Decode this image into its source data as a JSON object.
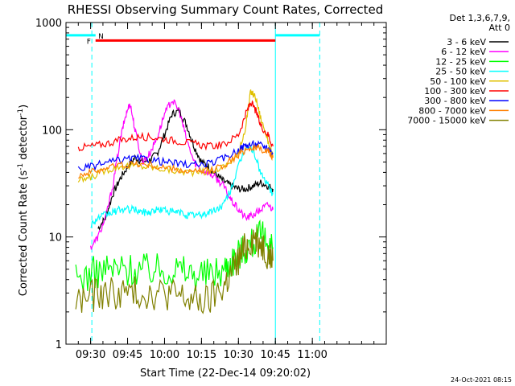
{
  "chart_data": {
    "type": "line",
    "title": "RHESSI Observing Summary Count Rates, Corrected",
    "xlabel": "Start Time (22-Dec-14 09:20:02)",
    "ylabel_main": "Corrected Count Rate (s",
    "ylabel_sup1": "-1",
    "ylabel_mid": " detector",
    "ylabel_sup2": "-1",
    "ylabel_end": ")",
    "x_range_min": [
      -10,
      120
    ],
    "y_range": [
      1,
      1000
    ],
    "y_scale": "log",
    "x_ticks": [
      {
        "min": 0,
        "label": "09:30"
      },
      {
        "min": 15,
        "label": "09:45"
      },
      {
        "min": 30,
        "label": "10:00"
      },
      {
        "min": 45,
        "label": "10:15"
      },
      {
        "min": 60,
        "label": "10:30"
      },
      {
        "min": 75,
        "label": "10:45"
      },
      {
        "min": 90,
        "label": "11:00"
      }
    ],
    "y_ticks": [
      {
        "value": 1,
        "label": "1"
      },
      {
        "value": 10,
        "label": "10"
      },
      {
        "value": 100,
        "label": "100"
      },
      {
        "value": 1000,
        "label": "1000"
      }
    ],
    "legend_header": [
      "Det 1,3,6,7,9,",
      "Att 0"
    ],
    "legend_position": "right",
    "series": [
      {
        "name": "3 - 6 keV",
        "color": "#000000",
        "points": [
          [
            3,
            12
          ],
          [
            6,
            15
          ],
          [
            9,
            25
          ],
          [
            12,
            35
          ],
          [
            15,
            45
          ],
          [
            18,
            55
          ],
          [
            21,
            50
          ],
          [
            24,
            52
          ],
          [
            27,
            60
          ],
          [
            30,
            90
          ],
          [
            33,
            140
          ],
          [
            36,
            150
          ],
          [
            39,
            110
          ],
          [
            42,
            70
          ],
          [
            45,
            50
          ],
          [
            48,
            45
          ],
          [
            51,
            38
          ],
          [
            54,
            33
          ],
          [
            57,
            30
          ],
          [
            60,
            28
          ],
          [
            63,
            28
          ],
          [
            66,
            30
          ],
          [
            69,
            32
          ],
          [
            72,
            30
          ],
          [
            74,
            28
          ]
        ]
      },
      {
        "name": "6 - 12 keV",
        "color": "#ff00ff",
        "points": [
          [
            0,
            8
          ],
          [
            3,
            10
          ],
          [
            6,
            15
          ],
          [
            9,
            30
          ],
          [
            12,
            80
          ],
          [
            14,
            130
          ],
          [
            16,
            180
          ],
          [
            18,
            100
          ],
          [
            21,
            50
          ],
          [
            24,
            60
          ],
          [
            27,
            85
          ],
          [
            30,
            140
          ],
          [
            33,
            190
          ],
          [
            36,
            150
          ],
          [
            39,
            80
          ],
          [
            42,
            50
          ],
          [
            45,
            42
          ],
          [
            48,
            40
          ],
          [
            51,
            35
          ],
          [
            54,
            30
          ],
          [
            57,
            22
          ],
          [
            60,
            18
          ],
          [
            63,
            15
          ],
          [
            66,
            16
          ],
          [
            69,
            18
          ],
          [
            72,
            20
          ],
          [
            74,
            18
          ]
        ]
      },
      {
        "name": "12 - 25 keV",
        "color": "#00ff00",
        "points": [
          [
            -6,
            4
          ],
          [
            0,
            4.5
          ],
          [
            6,
            5
          ],
          [
            12,
            5
          ],
          [
            18,
            5
          ],
          [
            24,
            5
          ],
          [
            30,
            5
          ],
          [
            36,
            5
          ],
          [
            42,
            4.5
          ],
          [
            48,
            4.5
          ],
          [
            54,
            5
          ],
          [
            57,
            6
          ],
          [
            60,
            7
          ],
          [
            63,
            8
          ],
          [
            66,
            9
          ],
          [
            69,
            10
          ],
          [
            72,
            9
          ],
          [
            74,
            8
          ]
        ]
      },
      {
        "name": "25 - 50 keV",
        "color": "#00ffff",
        "points": [
          [
            0,
            13
          ],
          [
            3,
            15
          ],
          [
            6,
            16
          ],
          [
            9,
            17
          ],
          [
            12,
            18
          ],
          [
            15,
            18
          ],
          [
            18,
            18
          ],
          [
            21,
            17
          ],
          [
            24,
            17
          ],
          [
            27,
            18
          ],
          [
            30,
            18
          ],
          [
            33,
            17
          ],
          [
            36,
            17
          ],
          [
            39,
            16
          ],
          [
            42,
            16
          ],
          [
            45,
            16
          ],
          [
            48,
            17
          ],
          [
            51,
            18
          ],
          [
            54,
            20
          ],
          [
            57,
            28
          ],
          [
            60,
            45
          ],
          [
            63,
            70
          ],
          [
            66,
            65
          ],
          [
            69,
            40
          ],
          [
            72,
            30
          ],
          [
            74,
            25
          ]
        ]
      },
      {
        "name": "50 - 100 keV",
        "color": "#e0c000",
        "points": [
          [
            -5,
            33
          ],
          [
            0,
            36
          ],
          [
            6,
            42
          ],
          [
            12,
            46
          ],
          [
            18,
            46
          ],
          [
            24,
            45
          ],
          [
            30,
            43
          ],
          [
            36,
            41
          ],
          [
            42,
            40
          ],
          [
            48,
            41
          ],
          [
            54,
            45
          ],
          [
            60,
            58
          ],
          [
            63,
            110
          ],
          [
            65,
            230
          ],
          [
            67,
            200
          ],
          [
            69,
            130
          ],
          [
            72,
            80
          ],
          [
            74,
            55
          ]
        ]
      },
      {
        "name": "100 - 300 keV",
        "color": "#ff0000",
        "points": [
          [
            -5,
            68
          ],
          [
            0,
            70
          ],
          [
            6,
            74
          ],
          [
            12,
            80
          ],
          [
            18,
            85
          ],
          [
            24,
            86
          ],
          [
            30,
            82
          ],
          [
            36,
            78
          ],
          [
            42,
            74
          ],
          [
            48,
            70
          ],
          [
            54,
            72
          ],
          [
            60,
            90
          ],
          [
            63,
            140
          ],
          [
            65,
            180
          ],
          [
            67,
            150
          ],
          [
            69,
            110
          ],
          [
            72,
            90
          ],
          [
            74,
            70
          ]
        ]
      },
      {
        "name": "300 - 800 keV",
        "color": "#0000ff",
        "points": [
          [
            -5,
            43
          ],
          [
            0,
            45
          ],
          [
            6,
            49
          ],
          [
            12,
            52
          ],
          [
            18,
            54
          ],
          [
            24,
            53
          ],
          [
            30,
            50
          ],
          [
            36,
            48
          ],
          [
            42,
            47
          ],
          [
            48,
            48
          ],
          [
            54,
            54
          ],
          [
            60,
            65
          ],
          [
            63,
            72
          ],
          [
            66,
            73
          ],
          [
            69,
            72
          ],
          [
            72,
            68
          ],
          [
            74,
            60
          ]
        ]
      },
      {
        "name": "800 - 7000 keV",
        "color": "#ff8000",
        "points": [
          [
            -5,
            38
          ],
          [
            0,
            40
          ],
          [
            6,
            44
          ],
          [
            12,
            47
          ],
          [
            18,
            48
          ],
          [
            24,
            47
          ],
          [
            30,
            44
          ],
          [
            36,
            42
          ],
          [
            42,
            40
          ],
          [
            48,
            41
          ],
          [
            54,
            47
          ],
          [
            60,
            58
          ],
          [
            63,
            66
          ],
          [
            66,
            68
          ],
          [
            69,
            66
          ],
          [
            72,
            63
          ],
          [
            74,
            55
          ]
        ]
      },
      {
        "name": "7000 - 15000 keV",
        "color": "#808000",
        "points": [
          [
            -6,
            2.5
          ],
          [
            0,
            2.8
          ],
          [
            6,
            3
          ],
          [
            12,
            3
          ],
          [
            18,
            3
          ],
          [
            24,
            3
          ],
          [
            30,
            3
          ],
          [
            36,
            2.8
          ],
          [
            42,
            2.5
          ],
          [
            48,
            2.5
          ],
          [
            54,
            3.5
          ],
          [
            57,
            4.5
          ],
          [
            60,
            6
          ],
          [
            63,
            8
          ],
          [
            66,
            10
          ],
          [
            69,
            9
          ],
          [
            72,
            7
          ],
          [
            74,
            6
          ]
        ]
      }
    ],
    "annotations": {
      "flag_f_label": "F",
      "flag_n_label": "N",
      "flare_bar": {
        "x0": 2,
        "x1": 75,
        "y": 680,
        "color": "#ff0000"
      },
      "night_bars": [
        {
          "x0": -10,
          "x1": 2,
          "y": 760,
          "color": "#00ffff"
        },
        {
          "x0": 75,
          "x1": 93,
          "y": 760,
          "color": "#00ffff"
        }
      ],
      "vlines_solid": [
        -10,
        75
      ],
      "vlines_dashed": [
        0.5,
        93
      ],
      "vline_color": "#00ffff"
    },
    "footer_timestamp": "24-Oct-2021 08:15"
  }
}
